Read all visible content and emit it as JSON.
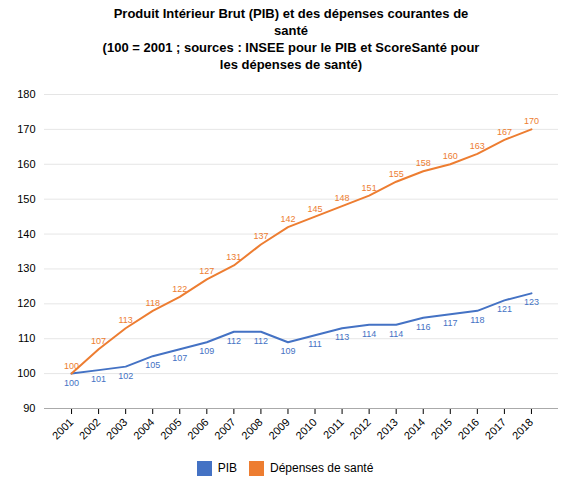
{
  "chart_data": {
    "type": "line",
    "title": "Produit Intérieur Brut (PIB) et des dépenses courantes de\nsanté\n(100 = 2001 ; sources : INSEE pour le PIB et ScoreSanté pour\nles dépenses de santé)",
    "x": [
      2001,
      2002,
      2003,
      2004,
      2005,
      2006,
      2007,
      2008,
      2009,
      2010,
      2011,
      2012,
      2013,
      2014,
      2015,
      2016,
      2017,
      2018
    ],
    "series": [
      {
        "name": "PIB",
        "color": "#4472C4",
        "values": [
          100,
          101,
          102,
          105,
          107,
          109,
          112,
          112,
          109,
          111,
          113,
          114,
          114,
          116,
          117,
          118,
          121,
          123
        ]
      },
      {
        "name": "Dépenses de santé",
        "color": "#ED7D31",
        "values": [
          100,
          107,
          113,
          118,
          122,
          127,
          131,
          137,
          142,
          145,
          148,
          151,
          155,
          158,
          160,
          163,
          167,
          170
        ]
      }
    ],
    "xlim": [
      2000,
      2019
    ],
    "xticks": [
      2001,
      2002,
      2003,
      2004,
      2005,
      2006,
      2007,
      2008,
      2009,
      2010,
      2011,
      2012,
      2013,
      2014,
      2015,
      2016,
      2017,
      2018
    ],
    "ylim": [
      90,
      180
    ],
    "yticks": [
      90,
      100,
      110,
      120,
      130,
      140,
      150,
      160,
      170,
      180
    ],
    "grid": true,
    "data_labels": true,
    "legend": "bottom"
  }
}
